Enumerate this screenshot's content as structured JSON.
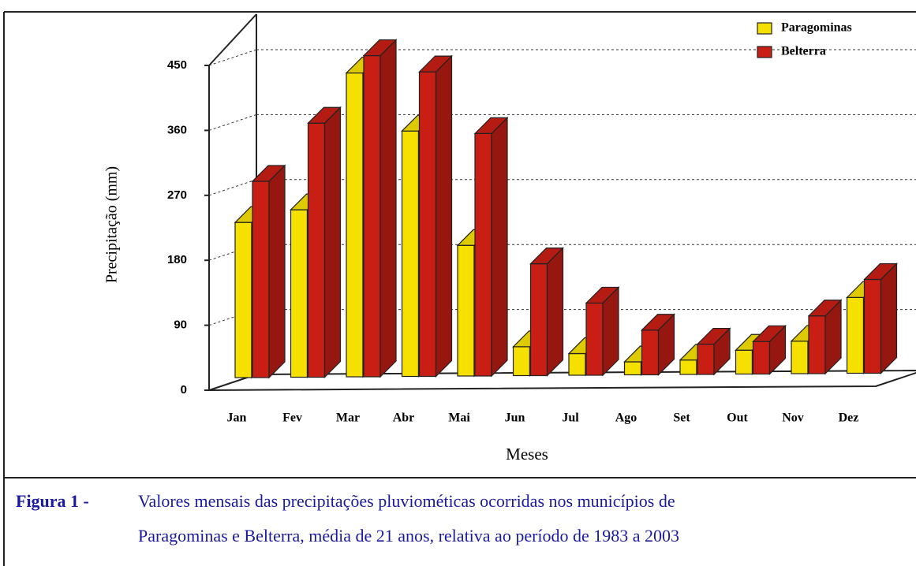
{
  "chart_data": {
    "type": "bar3d",
    "y_label": "Precipitação (mm)",
    "x_label": "Meses",
    "categories": [
      "Jan",
      "Fev",
      "Mar",
      "Abr",
      "Mai",
      "Jun",
      "Jul",
      "Ago",
      "Set",
      "Out",
      "Nov",
      "Dez"
    ],
    "series": [
      {
        "name": "Paragominas",
        "color": "#f5e000",
        "values": [
          215,
          232,
          421,
          340,
          181,
          40,
          30,
          18,
          20,
          33,
          45,
          105
        ]
      },
      {
        "name": "Belterra",
        "color": "#c81e14",
        "values": [
          272,
          352,
          445,
          422,
          336,
          155,
          100,
          62,
          42,
          45,
          80,
          130
        ]
      }
    ],
    "ylim": [
      0,
      450
    ],
    "yticks": [
      0,
      90,
      180,
      270,
      360,
      450
    ],
    "grid": true,
    "legend": "top-right"
  },
  "caption": {
    "label": "Figura 1 -",
    "lines": [
      "Valores mensais das precipitações pluviométicas  ocorridas nos municípios de",
      "Paragominas e Belterra, média de 21 anos, relativa ao período de 1983 a 2003"
    ]
  }
}
